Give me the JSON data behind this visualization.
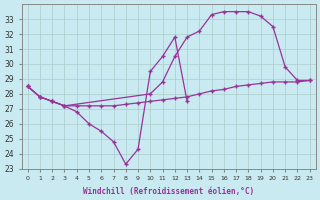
{
  "xlabel": "Windchill (Refroidissement éolien,°C)",
  "x_ticks": [
    0,
    1,
    2,
    3,
    4,
    5,
    6,
    7,
    8,
    9,
    10,
    11,
    12,
    13,
    14,
    15,
    16,
    17,
    18,
    19,
    20,
    21,
    22,
    23
  ],
  "ylim": [
    23,
    34
  ],
  "xlim": [
    -0.5,
    23.5
  ],
  "yticks": [
    23,
    24,
    25,
    26,
    27,
    28,
    29,
    30,
    31,
    32,
    33
  ],
  "bg_color": "#c8eaf0",
  "line_color": "#993399",
  "grid_color": "#aacccc",
  "series": [
    {
      "x": [
        0,
        1,
        2,
        3,
        4,
        5,
        6,
        7,
        8,
        9,
        10,
        11,
        12,
        13
      ],
      "y": [
        28.5,
        27.8,
        27.5,
        27.2,
        26.8,
        26.0,
        25.5,
        24.8,
        23.3,
        24.3,
        29.5,
        30.5,
        31.8,
        27.5
      ]
    },
    {
      "x": [
        0,
        1,
        2,
        3,
        10,
        11,
        12,
        13,
        14,
        15,
        16,
        17,
        18,
        19,
        20,
        21,
        22,
        23
      ],
      "y": [
        28.5,
        27.8,
        27.5,
        27.2,
        28.0,
        28.8,
        30.5,
        31.8,
        32.2,
        33.3,
        33.5,
        33.5,
        33.5,
        33.2,
        32.5,
        29.8,
        28.9,
        28.9
      ]
    },
    {
      "x": [
        0,
        1,
        2,
        3,
        4,
        5,
        6,
        7,
        8,
        9,
        10,
        11,
        12,
        13,
        14,
        15,
        16,
        17,
        18,
        19,
        20,
        21,
        22,
        23
      ],
      "y": [
        28.5,
        27.8,
        27.5,
        27.2,
        27.2,
        27.2,
        27.2,
        27.2,
        27.3,
        27.4,
        27.5,
        27.6,
        27.7,
        27.8,
        28.0,
        28.2,
        28.3,
        28.5,
        28.6,
        28.7,
        28.8,
        28.8,
        28.8,
        28.9
      ]
    }
  ]
}
